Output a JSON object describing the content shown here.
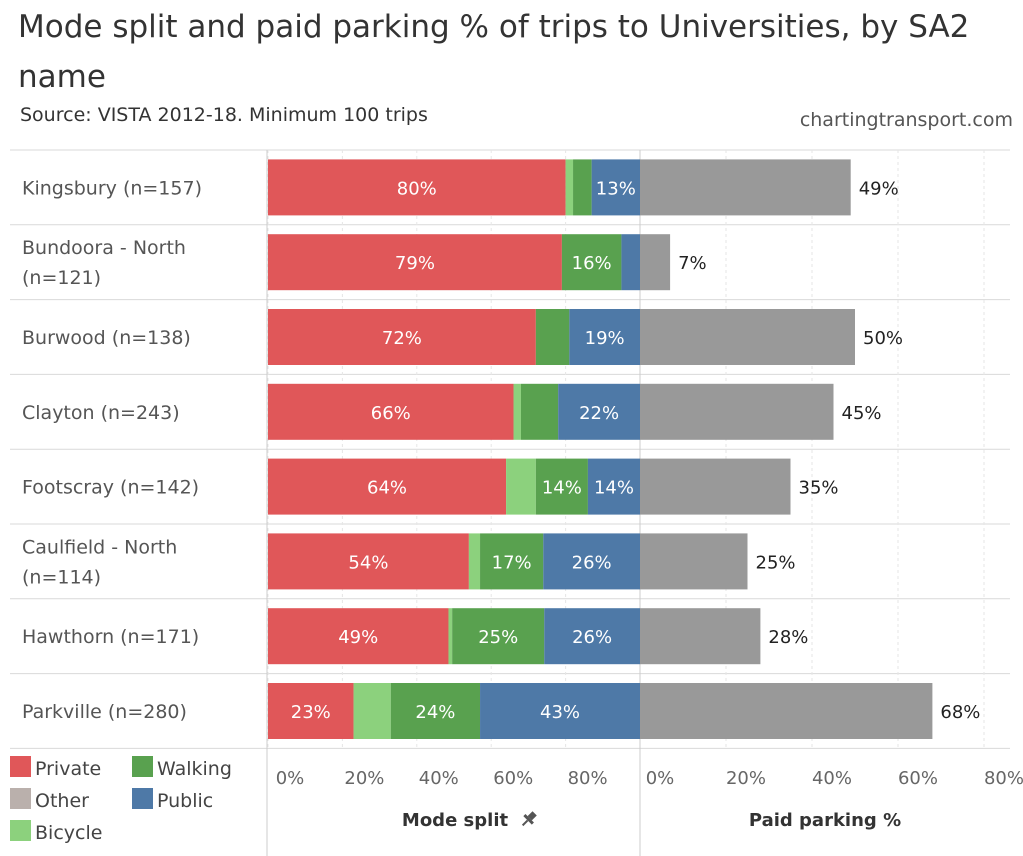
{
  "title": "Mode split and paid parking % of trips to Universities, by SA2 name",
  "subtitle": "Source: VISTA 2012-18. Minimum 100 trips",
  "credit": "chartingtransport.com",
  "colors": {
    "Private": "#e05759",
    "Other": "#bab0ac",
    "Bicycle": "#8cd17d",
    "Walking": "#59a14f",
    "Public": "#4e79a7",
    "parking": "#999999"
  },
  "chart_data": {
    "type": "bar",
    "orientation": "horizontal",
    "stacked": true,
    "panels": [
      {
        "title": "Mode split",
        "xlim": [
          0,
          100
        ],
        "ticks": [
          "0%",
          "20%",
          "40%",
          "60%",
          "80%"
        ]
      },
      {
        "title": "Paid parking %",
        "xlim": [
          0,
          80
        ],
        "ticks": [
          "0%",
          "20%",
          "40%",
          "60%",
          "80%"
        ]
      }
    ],
    "categories": [
      "Kingsbury (n=157)",
      "Bundoora - North (n=121)",
      "Burwood (n=138)",
      "Clayton (n=243)",
      "Footscray (n=142)",
      "Caulfield - North (n=114)",
      "Hawthorn (n=171)",
      "Parkville (n=280)"
    ],
    "category_lines": [
      [
        "Kingsbury (n=157)"
      ],
      [
        "Bundoora - North",
        "(n=121)"
      ],
      [
        "Burwood (n=138)"
      ],
      [
        "Clayton (n=243)"
      ],
      [
        "Footscray (n=142)"
      ],
      [
        "Caulfield - North",
        "(n=114)"
      ],
      [
        "Hawthorn (n=171)"
      ],
      [
        "Parkville (n=280)"
      ]
    ],
    "series": [
      {
        "name": "Private",
        "values": [
          80,
          79,
          72,
          66,
          64,
          54,
          49,
          23
        ],
        "labels": [
          "80%",
          "79%",
          "72%",
          "66%",
          "64%",
          "54%",
          "49%",
          "23%"
        ]
      },
      {
        "name": "Other",
        "values": [
          0,
          0,
          0,
          0,
          0,
          0,
          0,
          0
        ],
        "labels": [
          "",
          "",
          "",
          "",
          "",
          "",
          "",
          ""
        ]
      },
      {
        "name": "Bicycle",
        "values": [
          2,
          0,
          0,
          2,
          8,
          3,
          1,
          10
        ],
        "labels": [
          "",
          "",
          "",
          "",
          "",
          "",
          "",
          ""
        ]
      },
      {
        "name": "Walking",
        "values": [
          5,
          16,
          9,
          10,
          14,
          17,
          25,
          24
        ],
        "labels": [
          "",
          "16%",
          "",
          "",
          "14%",
          "17%",
          "25%",
          "24%"
        ]
      },
      {
        "name": "Public",
        "values": [
          13,
          5,
          19,
          22,
          14,
          26,
          26,
          43
        ],
        "labels": [
          "13%",
          "",
          "19%",
          "22%",
          "14%",
          "26%",
          "26%",
          "43%"
        ]
      }
    ],
    "paid_parking": {
      "values": [
        49,
        7,
        50,
        45,
        35,
        25,
        28,
        68
      ],
      "labels": [
        "49%",
        "7%",
        "50%",
        "45%",
        "35%",
        "25%",
        "28%",
        "68%"
      ]
    },
    "legend": [
      {
        "name": "Private"
      },
      {
        "name": "Walking"
      },
      {
        "name": "Other"
      },
      {
        "name": "Public"
      },
      {
        "name": "Bicycle"
      }
    ],
    "legend_position": "bottom-left",
    "pin_icon": "pin-icon"
  }
}
